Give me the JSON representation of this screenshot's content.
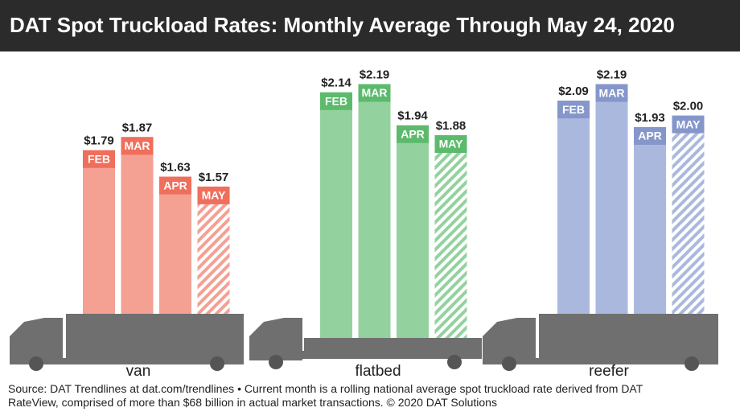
{
  "title": "DAT Spot Truckload Rates: Monthly Average Through May 24, 2020",
  "chart_data": [
    {
      "type": "bar",
      "title": "van",
      "categories": [
        "FEB",
        "MAR",
        "APR",
        "MAY"
      ],
      "values": [
        1.79,
        1.87,
        1.63,
        1.57
      ],
      "value_labels": [
        "$1.79",
        "$1.87",
        "$1.63",
        "$1.57"
      ],
      "color": "#f4a093",
      "label_color": "#ef6e5c",
      "ylim": [
        0.8,
        2.3
      ]
    },
    {
      "type": "bar",
      "title": "flatbed",
      "categories": [
        "FEB",
        "MAR",
        "APR",
        "MAY"
      ],
      "values": [
        2.14,
        2.19,
        1.94,
        1.88
      ],
      "value_labels": [
        "$2.14",
        "$2.19",
        "$1.94",
        "$1.88"
      ],
      "color": "#93d29e",
      "label_color": "#5cba6c",
      "ylim": [
        0.65,
        2.3
      ]
    },
    {
      "type": "bar",
      "title": "reefer",
      "categories": [
        "FEB",
        "MAR",
        "APR",
        "MAY"
      ],
      "values": [
        2.09,
        2.19,
        1.93,
        2.0
      ],
      "value_labels": [
        "$2.09",
        "$2.19",
        "$1.93",
        "$2.00"
      ],
      "color": "#abb8de",
      "label_color": "#8596cb",
      "ylim": [
        0.8,
        2.3
      ]
    }
  ],
  "source": "Source: DAT Trendlines at dat.com/trendlines • Current month is a rolling national average spot truckload rate derived from DAT RateView, comprised of more than $68 billion in actual market transactions. © 2020 DAT Solutions"
}
